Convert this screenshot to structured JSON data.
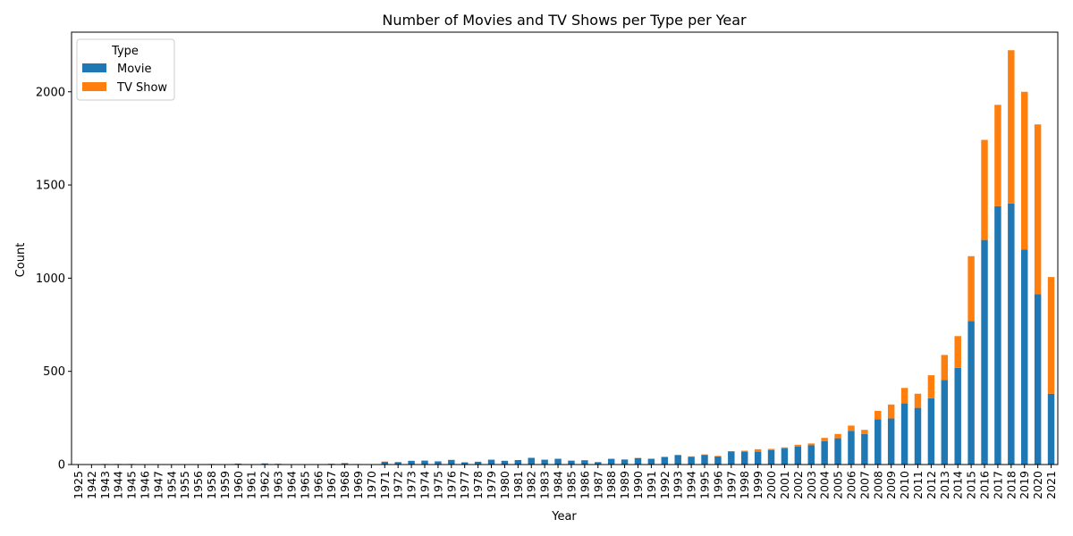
{
  "chart_data": {
    "type": "bar",
    "stacked": true,
    "title": "Number of Movies and TV Shows per Type per Year",
    "xlabel": "Year",
    "ylabel": "Count",
    "ylim": [
      0,
      2320
    ],
    "yticks": [
      0,
      500,
      1000,
      1500,
      2000
    ],
    "grid": false,
    "legend": {
      "title": "Type",
      "position": "top-left"
    },
    "categories": [
      "1925",
      "1942",
      "1943",
      "1944",
      "1945",
      "1946",
      "1947",
      "1954",
      "1955",
      "1956",
      "1958",
      "1959",
      "1960",
      "1961",
      "1962",
      "1963",
      "1964",
      "1965",
      "1966",
      "1967",
      "1968",
      "1969",
      "1970",
      "1971",
      "1972",
      "1973",
      "1974",
      "1975",
      "1976",
      "1977",
      "1978",
      "1979",
      "1980",
      "1981",
      "1982",
      "1983",
      "1984",
      "1985",
      "1986",
      "1987",
      "1988",
      "1989",
      "1990",
      "1991",
      "1992",
      "1993",
      "1994",
      "1995",
      "1996",
      "1997",
      "1998",
      "1999",
      "2000",
      "2001",
      "2002",
      "2003",
      "2004",
      "2005",
      "2006",
      "2007",
      "2008",
      "2009",
      "2010",
      "2011",
      "2012",
      "2013",
      "2014",
      "2015",
      "2016",
      "2017",
      "2018",
      "2019",
      "2020",
      "2021"
    ],
    "series": [
      {
        "name": "Movie",
        "color": "#1f77b4",
        "values": [
          0,
          2,
          3,
          3,
          3,
          1,
          0,
          2,
          2,
          2,
          3,
          1,
          5,
          1,
          6,
          3,
          2,
          2,
          1,
          4,
          7,
          2,
          2,
          15,
          13,
          20,
          21,
          17,
          25,
          11,
          15,
          26,
          20,
          24,
          36,
          26,
          31,
          21,
          23,
          13,
          30,
          27,
          35,
          31,
          40,
          50,
          42,
          52,
          43,
          70,
          69,
          69,
          78,
          86,
          96,
          103,
          126,
          141,
          181,
          164,
          243,
          247,
          328,
          304,
          355,
          454,
          518,
          770,
          1205,
          1386,
          1401,
          1153,
          913,
          380
        ]
      },
      {
        "name": "TV Show",
        "color": "#ff7f0e",
        "values": [
          1,
          0,
          0,
          0,
          0,
          1,
          1,
          0,
          0,
          0,
          0,
          0,
          0,
          0,
          0,
          2,
          0,
          0,
          0,
          1,
          1,
          1,
          0,
          1,
          0,
          0,
          0,
          0,
          0,
          2,
          0,
          0,
          0,
          0,
          0,
          0,
          0,
          0,
          0,
          0,
          2,
          0,
          1,
          0,
          2,
          2,
          2,
          2,
          3,
          2,
          5,
          13,
          6,
          6,
          10,
          10,
          17,
          23,
          28,
          22,
          45,
          75,
          83,
          76,
          124,
          134,
          171,
          348,
          537,
          544,
          822,
          847,
          912,
          626
        ]
      }
    ]
  }
}
